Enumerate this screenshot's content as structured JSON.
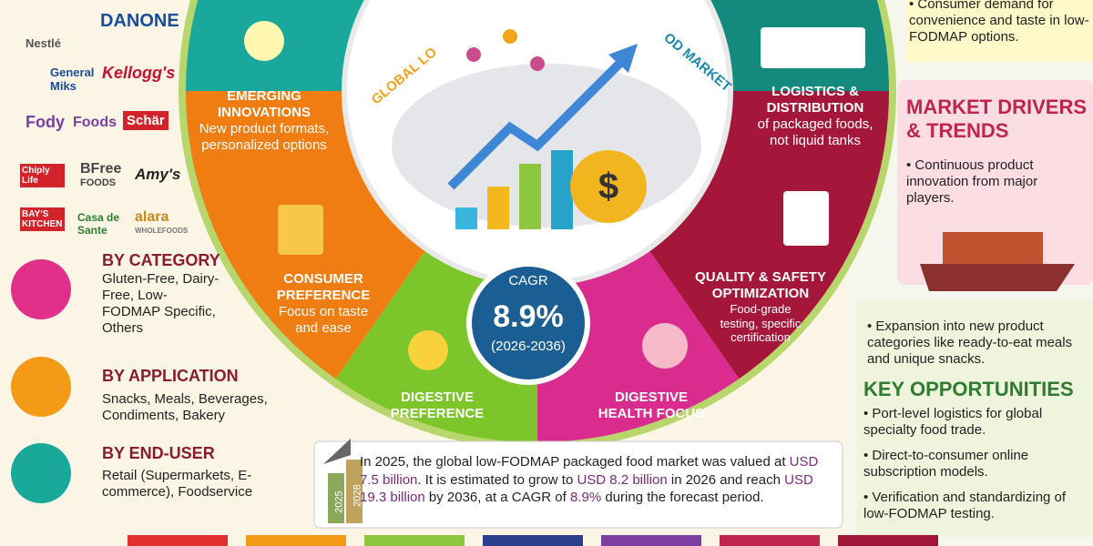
{
  "header": {
    "arc_left": "GLOBAL LO",
    "arc_right": "OD MARKET"
  },
  "logos": [
    "Nestlé",
    "DANONE",
    "General Miks",
    "Kellogg's",
    "Fody",
    "Foods",
    "Schär",
    "Chiply Life",
    "BFree",
    "FOODS",
    "Amy's",
    "BAY'S KITCHEN",
    "Casa de Sante",
    "alara",
    "WHOLEFOODS"
  ],
  "segments": [
    {
      "title": "BY CATEGORY",
      "text": "Gluten-Free, Dairy-Free, Low-FODMAP Specific, Others"
    },
    {
      "title": "BY APPLICATION",
      "text": "Snacks, Meals, Beverages, Condiments, Bakery"
    },
    {
      "title": "BY END-USER",
      "text": "Retail (Supermarkets, E-commerce), Foodservice"
    }
  ],
  "wheel": [
    {
      "title": "EMERGING INNOVATIONS",
      "text": "New product formats, personalized options"
    },
    {
      "title": "LOGISTICS & DISTRIBUTION",
      "text": "of packaged foods, not liquid tanks"
    },
    {
      "title": "CONSUMER PREFERENCE",
      "text": "Focus on taste and ease"
    },
    {
      "title": "QUALITY & SAFETY OPTIMIZATION",
      "text": "Food-grade testing, specific certification"
    },
    {
      "title": "DIGESTIVE PREFERENCE"
    },
    {
      "title": "DIGESTIVE HEALTH FOCUS"
    }
  ],
  "cagr": {
    "label": "CAGR",
    "value": "8.9%",
    "period": "(2026-2036)"
  },
  "summary": {
    "arrow_labels": [
      "2025",
      "2028"
    ],
    "parts": [
      "In 2025, the global low-FODMAP packaged food market was valued at",
      "USD 7.5 billion",
      ". It is estimated to grow to",
      "USD 8.2 billion",
      "in 2026 and reach",
      "USD 19.3 billion",
      "by 2036, at a CAGR of",
      "8.9%",
      "during the forecast period."
    ]
  },
  "right": {
    "top_bullet": "Consumer demand for convenience and taste in low-FODMAP options.",
    "drivers_title": "MARKET DRIVERS & TRENDS",
    "drivers": [
      "Continuous product innovation from major players.",
      "Expansion into new product categories like ready-to-eat meals and unique snacks."
    ],
    "opportunities_title": "KEY OPPORTUNITIES",
    "opportunities": [
      "Port-level logistics for global specialty food trade.",
      "Direct-to-consumer online subscription models.",
      "Verification and standardizing of low-FODMAP testing."
    ]
  }
}
